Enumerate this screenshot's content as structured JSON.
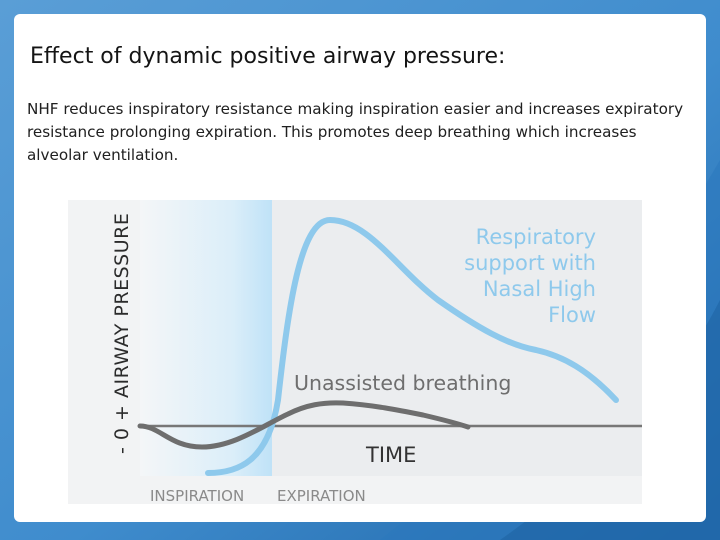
{
  "slide": {
    "title": "Effect of dynamic positive airway pressure:",
    "body": "NHF reduces inspiratory resistance making inspiration easier and increases expiratory resistance prolonging expiration.  This promotes deep breathing which increases alveolar ventilation."
  },
  "figure": {
    "y_axis_label": "- 0 + AIRWAY PRESSURE",
    "time_label": "TIME",
    "phase_labels": [
      "INSPIRATION",
      "EXPIRATION"
    ],
    "curve_labels": {
      "support": [
        "Respiratory",
        "support with",
        "Nasal High",
        "Flow"
      ],
      "unassisted": "Unassisted breathing"
    },
    "colors": {
      "support_curve": "#8ec9ec",
      "unassisted_curve": "#6e6e6e",
      "baseline": "#777777",
      "inspiration_band": "#bfe2f7",
      "background_blue": "#2a7fc0"
    }
  }
}
